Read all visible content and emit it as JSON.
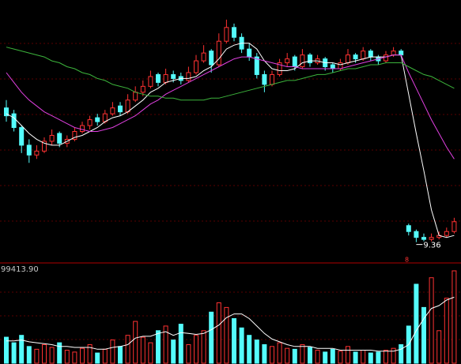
{
  "chart_data": [
    {
      "type": "candlestick",
      "ylim": [
        8.5,
        21.5
      ],
      "marker_label": "8",
      "annotation_index": 54,
      "candles": [
        [
          16.2,
          16.6,
          15.5,
          15.8
        ],
        [
          15.9,
          16.1,
          15.0,
          15.2
        ],
        [
          15.2,
          15.3,
          13.9,
          14.3
        ],
        [
          14.3,
          14.6,
          13.4,
          13.8
        ],
        [
          13.8,
          14.3,
          13.6,
          14.0
        ],
        [
          14.0,
          14.7,
          13.9,
          14.5
        ],
        [
          14.5,
          15.1,
          14.3,
          14.8
        ],
        [
          14.9,
          15.0,
          14.2,
          14.4
        ],
        [
          14.4,
          14.8,
          14.2,
          14.6
        ],
        [
          14.6,
          15.2,
          14.5,
          15.0
        ],
        [
          15.0,
          15.5,
          14.9,
          15.3
        ],
        [
          15.3,
          15.8,
          15.1,
          15.6
        ],
        [
          15.7,
          15.9,
          15.3,
          15.5
        ],
        [
          15.5,
          16.1,
          15.4,
          15.9
        ],
        [
          15.9,
          16.5,
          15.8,
          16.2
        ],
        [
          16.3,
          16.5,
          15.8,
          16.0
        ],
        [
          16.0,
          16.9,
          15.9,
          16.6
        ],
        [
          16.6,
          17.3,
          16.5,
          17.0
        ],
        [
          17.0,
          17.6,
          16.8,
          17.3
        ],
        [
          17.3,
          18.1,
          17.2,
          17.8
        ],
        [
          17.9,
          18.0,
          17.3,
          17.5
        ],
        [
          17.5,
          18.2,
          17.4,
          17.9
        ],
        [
          17.9,
          18.1,
          17.5,
          17.7
        ],
        [
          17.8,
          18.0,
          17.4,
          17.6
        ],
        [
          17.6,
          18.3,
          17.5,
          18.0
        ],
        [
          18.0,
          18.9,
          17.9,
          18.6
        ],
        [
          18.6,
          19.4,
          18.5,
          19.0
        ],
        [
          19.1,
          19.2,
          18.0,
          18.4
        ],
        [
          18.4,
          20.0,
          18.3,
          19.6
        ],
        [
          19.6,
          20.7,
          19.5,
          20.3
        ],
        [
          20.3,
          20.5,
          19.6,
          19.8
        ],
        [
          19.8,
          20.0,
          19.0,
          19.2
        ],
        [
          19.2,
          19.5,
          18.6,
          18.8
        ],
        [
          18.8,
          19.0,
          17.7,
          17.9
        ],
        [
          17.9,
          18.1,
          17.0,
          17.4
        ],
        [
          17.4,
          18.1,
          17.3,
          17.9
        ],
        [
          17.9,
          18.7,
          17.8,
          18.5
        ],
        [
          18.5,
          19.0,
          18.3,
          18.7
        ],
        [
          18.8,
          18.9,
          18.1,
          18.3
        ],
        [
          18.3,
          19.2,
          18.2,
          18.9
        ],
        [
          18.9,
          19.0,
          18.3,
          18.5
        ],
        [
          18.5,
          18.9,
          18.4,
          18.7
        ],
        [
          18.7,
          18.8,
          18.1,
          18.3
        ],
        [
          18.4,
          18.5,
          18.0,
          18.2
        ],
        [
          18.2,
          18.7,
          18.1,
          18.5
        ],
        [
          18.5,
          19.2,
          18.4,
          18.9
        ],
        [
          18.9,
          19.0,
          18.5,
          18.7
        ],
        [
          18.7,
          19.3,
          18.6,
          19.1
        ],
        [
          19.1,
          19.2,
          18.6,
          18.8
        ],
        [
          18.8,
          18.9,
          18.4,
          18.6
        ],
        [
          18.6,
          19.1,
          18.5,
          18.9
        ],
        [
          18.9,
          19.3,
          18.8,
          19.1
        ],
        [
          19.1,
          19.2,
          18.8,
          18.9
        ],
        [
          10.2,
          10.3,
          9.7,
          9.9
        ],
        [
          9.9,
          10.0,
          9.36,
          9.6
        ],
        [
          9.6,
          9.8,
          9.4,
          9.5
        ],
        [
          9.5,
          9.8,
          9.4,
          9.6
        ],
        [
          9.6,
          9.9,
          9.5,
          9.7
        ],
        [
          9.7,
          10.1,
          9.6,
          9.9
        ],
        [
          9.9,
          10.6,
          9.8,
          10.4
        ]
      ],
      "up_color": "#ff3232",
      "down_color": "#54fcfc",
      "series": [
        {
          "color": "#ffffff",
          "values": [
            15.9,
            15.7,
            15.3,
            14.9,
            14.6,
            14.4,
            14.3,
            14.3,
            14.5,
            14.7,
            14.8,
            15.0,
            15.2,
            15.5,
            15.7,
            15.8,
            16.0,
            16.3,
            16.6,
            17.0,
            17.2,
            17.5,
            17.6,
            17.7,
            17.7,
            17.8,
            18.1,
            18.3,
            18.7,
            19.2,
            19.4,
            19.5,
            19.5,
            19.2,
            18.6,
            18.2,
            18.1,
            18.1,
            18.2,
            18.5,
            18.6,
            18.6,
            18.5,
            18.5,
            18.4,
            18.5,
            18.6,
            18.7,
            18.8,
            18.8,
            18.8,
            18.9,
            18.9,
            16.9,
            14.9,
            13.0,
            11.0,
            9.7,
            9.6,
            9.7
          ]
        },
        {
          "color": "#e040e0",
          "values": [
            18.0,
            17.5,
            17.0,
            16.6,
            16.3,
            16.0,
            15.8,
            15.6,
            15.4,
            15.2,
            15.1,
            15.0,
            15.0,
            15.1,
            15.2,
            15.4,
            15.6,
            15.8,
            16.1,
            16.4,
            16.6,
            16.9,
            17.1,
            17.3,
            17.5,
            17.7,
            17.9,
            18.1,
            18.3,
            18.5,
            18.7,
            18.8,
            18.8,
            18.7,
            18.6,
            18.5,
            18.4,
            18.3,
            18.3,
            18.2,
            18.2,
            18.2,
            18.2,
            18.2,
            18.2,
            18.3,
            18.4,
            18.5,
            18.6,
            18.7,
            18.8,
            18.9,
            18.9,
            18.0,
            17.2,
            16.4,
            15.6,
            14.9,
            14.2,
            13.6
          ]
        },
        {
          "color": "#3cb43c",
          "values": [
            19.3,
            19.2,
            19.1,
            19.0,
            18.9,
            18.8,
            18.6,
            18.5,
            18.3,
            18.2,
            18.0,
            17.9,
            17.7,
            17.6,
            17.4,
            17.3,
            17.2,
            17.0,
            16.9,
            16.8,
            16.8,
            16.7,
            16.7,
            16.6,
            16.6,
            16.6,
            16.6,
            16.7,
            16.7,
            16.8,
            16.9,
            17.0,
            17.1,
            17.2,
            17.3,
            17.4,
            17.5,
            17.6,
            17.6,
            17.7,
            17.8,
            17.9,
            17.9,
            18.0,
            18.1,
            18.2,
            18.2,
            18.3,
            18.4,
            18.4,
            18.5,
            18.5,
            18.5,
            18.3,
            18.1,
            17.9,
            17.8,
            17.6,
            17.4,
            17.2
          ]
        }
      ]
    },
    {
      "type": "volume",
      "max": {
        "value": 99413.9,
        "label": "99413.90"
      },
      "values": [
        28000,
        22000,
        30000,
        18000,
        15000,
        20000,
        17000,
        22000,
        14000,
        12000,
        16000,
        20000,
        11000,
        15000,
        25000,
        18000,
        30000,
        45000,
        28000,
        22000,
        35000,
        40000,
        25000,
        42000,
        20000,
        30000,
        35000,
        55000,
        65000,
        60000,
        48000,
        38000,
        30000,
        25000,
        20000,
        18000,
        22000,
        16000,
        15000,
        20000,
        17000,
        14000,
        12000,
        15000,
        13000,
        18000,
        12000,
        14000,
        11000,
        12000,
        14000,
        16000,
        20000,
        40000,
        85000,
        60000,
        92000,
        35000,
        70000,
        99413.9
      ],
      "series": [
        {
          "color": "#ffffff",
          "values": [
            24000,
            24000,
            25000,
            23000,
            22000,
            21000,
            20000,
            18000,
            18000,
            17000,
            17000,
            17000,
            15000,
            15000,
            17000,
            18000,
            20000,
            27000,
            29000,
            29000,
            32000,
            34000,
            30000,
            33000,
            32000,
            31000,
            32000,
            36000,
            41000,
            49000,
            53000,
            53000,
            48000,
            40000,
            32000,
            26000,
            23000,
            20000,
            18000,
            18000,
            18000,
            16000,
            16000,
            16000,
            14000,
            14000,
            14000,
            14000,
            14000,
            13000,
            13000,
            13000,
            15000,
            20000,
            35000,
            48000,
            59000,
            62000,
            68000,
            71000
          ]
        }
      ]
    }
  ]
}
